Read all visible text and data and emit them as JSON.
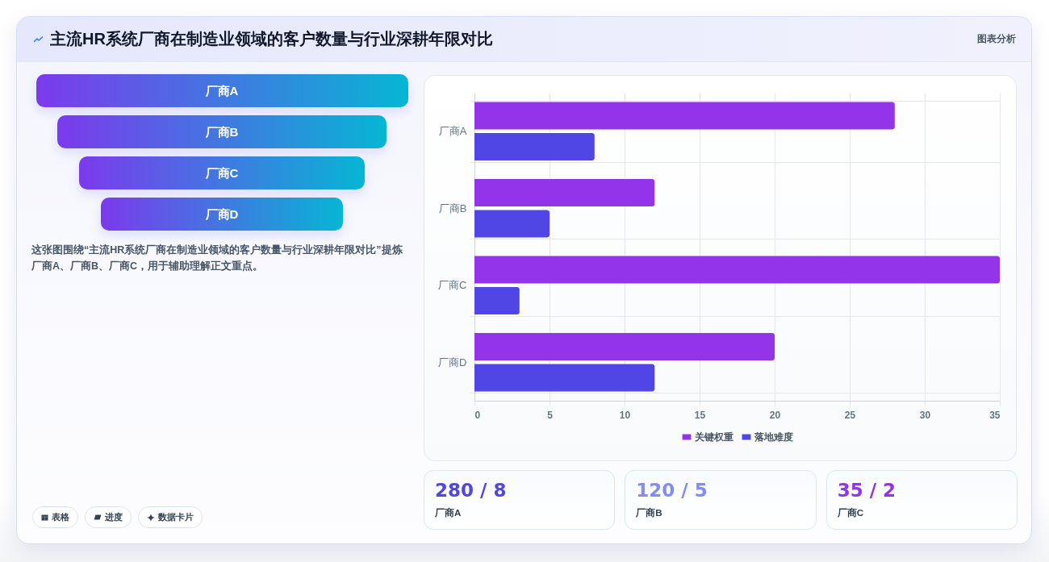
{
  "chart_data": [
    {
      "type": "other",
      "title": "主流HR系统厂商在制造业领域的客户数量与行业深耕年限对比",
      "categories": [
        "厂商A",
        "厂商B",
        "厂商C",
        "厂商D"
      ],
      "annotations": [
        "图表分析",
        "这张图围绕“主流HR系统厂商在制造业领域的客户数量与行业深耕年限对比”提炼厂商A、厂商B、厂商C，用于辅助理解正文重点。",
        "表格",
        "进度",
        "数据卡片"
      ]
    },
    {
      "type": "bar",
      "orientation": "horizontal",
      "categories": [
        "厂商A",
        "厂商B",
        "厂商C",
        "厂商D"
      ],
      "series": [
        {
          "name": "关键权重",
          "color": "#9333ea",
          "values": [
            28,
            12,
            35,
            20
          ]
        },
        {
          "name": "落地难度",
          "color": "#4f46e5",
          "values": [
            8,
            5,
            3,
            12
          ]
        }
      ],
      "xlim": [
        0,
        35
      ],
      "xticks": [
        0,
        5,
        10,
        15,
        20,
        25,
        30,
        35
      ],
      "grid": true,
      "legend": "bottom"
    },
    {
      "type": "other",
      "categories": [
        "厂商A",
        "厂商B",
        "厂商C"
      ],
      "value_labels": [
        "280 / 8",
        "120 / 5",
        "35 / 2"
      ]
    }
  ]
}
